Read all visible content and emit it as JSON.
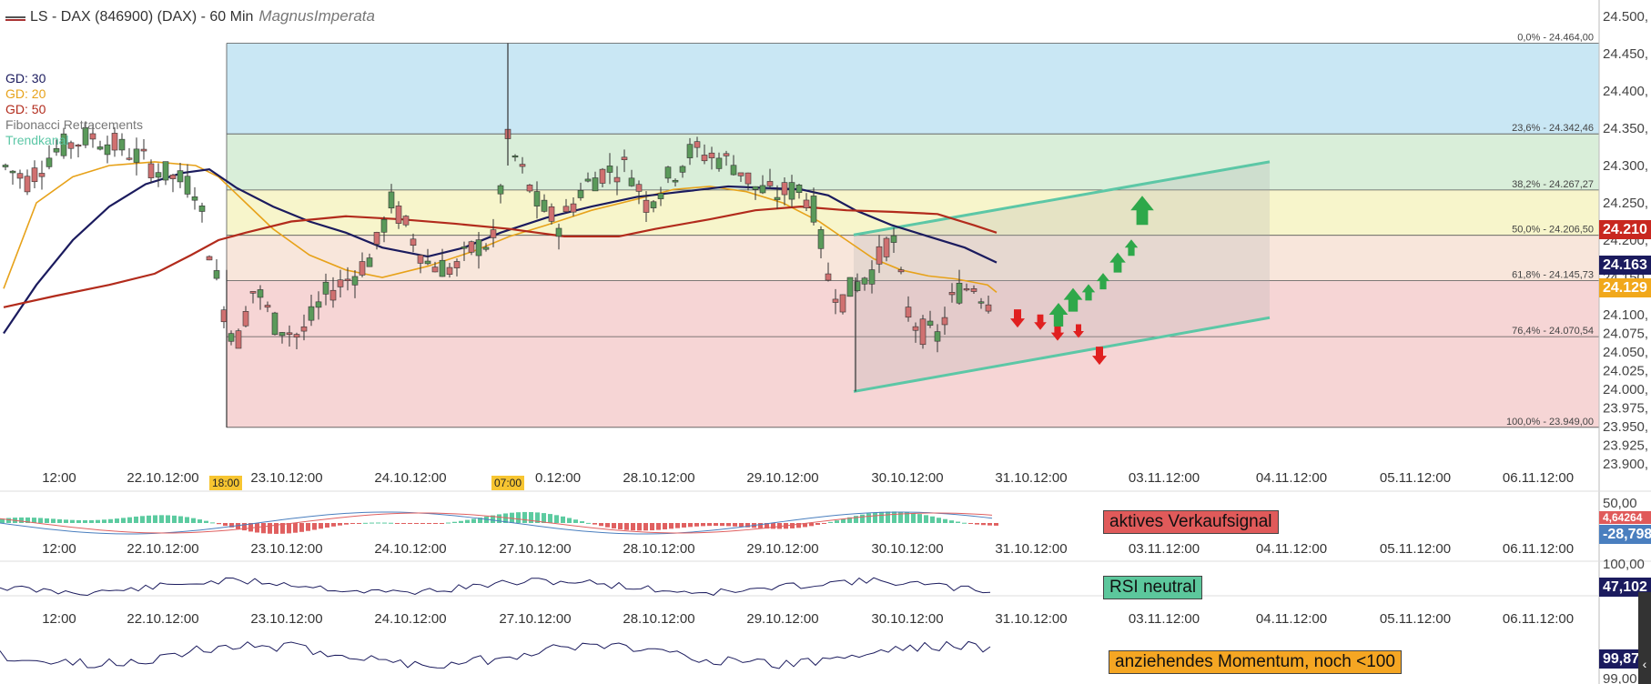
{
  "title": {
    "symbol": "LS - DAX (846900) (DAX) - 60 Min",
    "brand": "MagnusImperata"
  },
  "legend": [
    {
      "label": "GD: 30",
      "color": "#1b1b5e"
    },
    {
      "label": "GD: 20",
      "color": "#e7a21a"
    },
    {
      "label": "GD: 50",
      "color": "#b22b1c"
    },
    {
      "label": "Fibonacci Retracements",
      "color": "#777777"
    },
    {
      "label": "Trendkanal",
      "color": "#5cc7a6"
    }
  ],
  "chart_data": {
    "type": "candlestick",
    "price_axis": {
      "min": 23900,
      "max": 24500,
      "ticks": [
        "24.500,",
        "24.450,",
        "24.400,",
        "24.350,",
        "24.300,",
        "24.250,",
        "24.200,",
        "24.150,",
        "24.100,",
        "24.075,",
        "24.050,",
        "24.025,",
        "24.000,",
        "23.975,",
        "23.950,",
        "23.925,",
        "23.900,"
      ]
    },
    "time_axis_labels": [
      "12:00",
      "22.10.12:00",
      "23.10.12:00",
      "24.10.12:00",
      "27.10.12:00",
      "28.10.12:00",
      "29.10.12:00",
      "30.10.12:00",
      "31.10.12:00",
      "03.11.12:00",
      "04.11.12:00",
      "05.11.12:00",
      "06.11.12:00"
    ],
    "time_tags": [
      "18:00",
      "07:00"
    ],
    "fibonacci_levels": [
      {
        "label": "0,0% - 24.464,00",
        "value": 24464.0,
        "fill": "#c6e6f3"
      },
      {
        "label": "23,6% - 24.342,46",
        "value": 24342.46,
        "fill": "#d7edd7"
      },
      {
        "label": "38,2% - 24.267,27",
        "value": 24267.27,
        "fill": "#f7f4c8"
      },
      {
        "label": "50,0% - 24.206,50",
        "value": 24206.5,
        "fill": "#f8e5d9"
      },
      {
        "label": "61,8% - 24.145,73",
        "value": 24145.73,
        "fill": "#f6d3d3"
      },
      {
        "label": "76,4% - 24.070,54",
        "value": 24070.54,
        "fill": "#f6d3d3"
      },
      {
        "label": "100,0% - 23.949,00",
        "value": 23949.0,
        "fill": "#f6d3d3"
      }
    ],
    "price_badges": [
      {
        "value": "24.210",
        "color": "#c8271f"
      },
      {
        "value": "24.163",
        "color": "#1b1b5e"
      },
      {
        "value": "24.129",
        "color": "#f1a81b"
      }
    ],
    "indicator_panels": [
      {
        "name": "macd",
        "ticks": [
          "50,00"
        ],
        "badges": [
          {
            "value": "4,64264",
            "color": "#e05a5a"
          },
          {
            "value": "-28,798",
            "color": "#4a7fbf"
          }
        ],
        "signal": "aktives Verkaufsignal"
      },
      {
        "name": "rsi",
        "ticks": [
          "100,00"
        ],
        "badges": [
          {
            "value": "47,102",
            "color": "#1b1b5e"
          }
        ],
        "signal": "RSI neutral"
      },
      {
        "name": "momentum",
        "ticks": [
          "99,00"
        ],
        "badges": [
          {
            "value": "99,87",
            "color": "#1b1b5e"
          }
        ],
        "signal": "anziehendes Momentum, noch <100"
      }
    ]
  }
}
